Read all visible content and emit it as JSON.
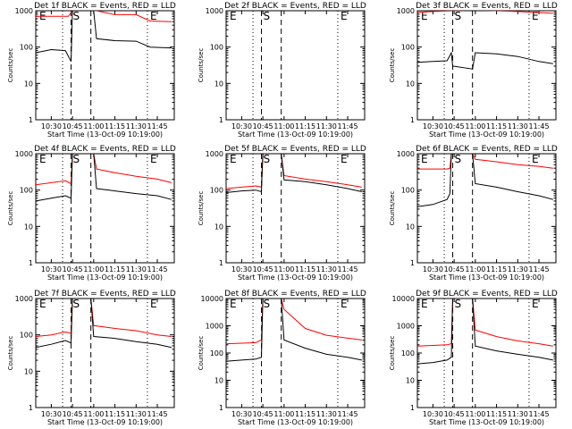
{
  "figure": {
    "colors": {
      "events": "#000000",
      "lld": "#ff0000",
      "axes": "#000000"
    }
  },
  "chart_data": [
    {
      "type": "line",
      "title": "Det 1f BLACK = Events, RED = LLD",
      "xlabel": "Start Time (13-Oct-09 10:19:00)",
      "ylabel": "Counts/sec",
      "y_scale": "log",
      "ylim": [
        1,
        1000
      ],
      "x_ticks": [
        "10:30",
        "10:45",
        "11:00",
        "11:15",
        "11:30",
        "11:45"
      ],
      "y_ticks": [
        "1",
        "10",
        "100",
        "1000"
      ],
      "markers": [
        "E",
        "S",
        "E"
      ],
      "series": [
        {
          "x": [
            "10:19",
            "10:30",
            "10:40",
            "10:42",
            "10:45",
            "11:00",
            "11:02",
            "11:15",
            "11:30",
            "11:40",
            "11:55"
          ],
          "values": [
            700,
            700,
            700,
            700,
            1000,
            1000,
            1000,
            780,
            780,
            520,
            500
          ],
          "color": "red"
        },
        {
          "x": [
            "10:19",
            "10:30",
            "10:40",
            "10:44",
            "10:45",
            "11:00",
            "11:02",
            "11:15",
            "11:30",
            "11:40",
            "11:55"
          ],
          "values": [
            70,
            85,
            80,
            40,
            1000,
            1000,
            170,
            150,
            145,
            100,
            95
          ],
          "color": "black"
        }
      ]
    },
    {
      "type": "line",
      "title": "Det 2f BLACK = Events, RED = LLD",
      "xlabel": "Start Time (13-Oct-09 10:19:00)",
      "ylabel": "Counts/sec",
      "y_scale": "log",
      "ylim": [
        1,
        1000
      ],
      "x_ticks": [
        "10:30",
        "10:45",
        "11:00",
        "11:15",
        "11:30",
        "11:45"
      ],
      "y_ticks": [
        "1",
        "10",
        "100",
        "1000"
      ],
      "markers": [
        "E",
        "S",
        "E"
      ],
      "series": [
        {
          "x": [
            "10:19",
            "10:30",
            "10:40",
            "10:44",
            "10:45",
            "10:57",
            "11:00",
            "11:15",
            "11:30",
            "11:45",
            "11:55"
          ],
          "values": [
            1500,
            1500,
            1500,
            1500,
            9000,
            9000,
            1600,
            1500,
            1500,
            1500,
            1500
          ],
          "color": "red"
        },
        {
          "x": [
            "10:19",
            "10:40",
            "10:44",
            "10:45",
            "11:00",
            "11:02",
            "11:30",
            "11:55"
          ],
          "values": [
            1000,
            1000,
            1000,
            1000,
            1000,
            1000,
            1000,
            1000
          ],
          "color": "black"
        }
      ]
    },
    {
      "type": "line",
      "title": "Det 3f BLACK = Events, RED = LLD",
      "xlabel": "Start Time (13-Oct-09 10:19:00)",
      "ylabel": "Counts/sec",
      "y_scale": "log",
      "ylim": [
        1,
        1000
      ],
      "x_ticks": [
        "10:30",
        "10:45",
        "11:00",
        "11:15",
        "11:30",
        "11:45"
      ],
      "y_ticks": [
        "1",
        "10",
        "100",
        "1000"
      ],
      "markers": [
        "E",
        "S",
        "E"
      ],
      "series": [
        {
          "x": [
            "10:19",
            "10:30",
            "10:44",
            "10:45",
            "11:00",
            "11:15",
            "11:30",
            "11:55"
          ],
          "values": [
            900,
            950,
            1000,
            1000,
            1050,
            1000,
            950,
            850
          ],
          "color": "red"
        },
        {
          "x": [
            "10:19",
            "10:30",
            "10:40",
            "10:43",
            "10:44",
            "10:58",
            "11:00",
            "11:15",
            "11:30",
            "11:45",
            "11:55"
          ],
          "values": [
            38,
            40,
            42,
            70,
            30,
            25,
            70,
            65,
            55,
            40,
            35
          ],
          "color": "black"
        }
      ]
    },
    {
      "type": "line",
      "title": "Det 4f BLACK = Events, RED = LLD",
      "xlabel": "Start Time (13-Oct-09 10:19:00)",
      "ylabel": "Counts/sec",
      "y_scale": "log",
      "ylim": [
        1,
        1000
      ],
      "x_ticks": [
        "10:30",
        "10:45",
        "11:00",
        "11:15",
        "11:30",
        "11:45"
      ],
      "y_ticks": [
        "1",
        "10",
        "100",
        "1000"
      ],
      "markers": [
        "E",
        "S",
        "E"
      ],
      "series": [
        {
          "x": [
            "10:19",
            "10:30",
            "10:40",
            "10:44",
            "10:45",
            "11:00",
            "11:02",
            "11:15",
            "11:30",
            "11:45",
            "11:55"
          ],
          "values": [
            140,
            160,
            180,
            150,
            1000,
            1000,
            380,
            300,
            240,
            200,
            160
          ],
          "color": "red"
        },
        {
          "x": [
            "10:19",
            "10:30",
            "10:40",
            "10:44",
            "10:45",
            "11:00",
            "11:02",
            "11:15",
            "11:30",
            "11:45",
            "11:55"
          ],
          "values": [
            50,
            60,
            70,
            60,
            1000,
            1000,
            110,
            95,
            80,
            70,
            55
          ],
          "color": "black"
        }
      ]
    },
    {
      "type": "line",
      "title": "Det 5f BLACK = Events, RED = LLD",
      "xlabel": "Start Time (13-Oct-09 10:19:00)",
      "ylabel": "Counts/sec",
      "y_scale": "log",
      "ylim": [
        1,
        1000
      ],
      "x_ticks": [
        "10:30",
        "10:45",
        "11:00",
        "11:15",
        "11:30",
        "11:45"
      ],
      "y_ticks": [
        "1",
        "10",
        "100",
        "1000"
      ],
      "markers": [
        "E",
        "S",
        "E"
      ],
      "series": [
        {
          "x": [
            "10:19",
            "10:30",
            "10:40",
            "10:44",
            "10:45",
            "10:58",
            "11:00",
            "11:15",
            "11:30",
            "11:45",
            "11:55"
          ],
          "values": [
            110,
            120,
            130,
            120,
            1000,
            1000,
            250,
            200,
            170,
            140,
            120
          ],
          "color": "red"
        },
        {
          "x": [
            "10:19",
            "10:30",
            "10:40",
            "10:44",
            "10:45",
            "10:58",
            "11:00",
            "11:15",
            "11:30",
            "11:45",
            "11:55"
          ],
          "values": [
            85,
            95,
            100,
            90,
            1000,
            1000,
            190,
            170,
            140,
            110,
            90
          ],
          "color": "black"
        }
      ]
    },
    {
      "type": "line",
      "title": "Det 6f BLACK = Events, RED = LLD",
      "xlabel": "Start Time (13-Oct-09 10:19:00)",
      "ylabel": "Counts/sec",
      "y_scale": "log",
      "ylim": [
        1,
        1000
      ],
      "x_ticks": [
        "10:30",
        "10:45",
        "11:00",
        "11:15",
        "11:30",
        "11:45"
      ],
      "y_ticks": [
        "1",
        "10",
        "100",
        "1000"
      ],
      "markers": [
        "E",
        "S",
        "E"
      ],
      "series": [
        {
          "x": [
            "10:19",
            "10:30",
            "10:40",
            "10:42",
            "10:43",
            "10:58",
            "11:00",
            "11:15",
            "11:30",
            "11:45",
            "11:55"
          ],
          "values": [
            380,
            380,
            380,
            400,
            1000,
            1000,
            700,
            600,
            500,
            450,
            400
          ],
          "color": "red"
        },
        {
          "x": [
            "10:19",
            "10:30",
            "10:40",
            "10:42",
            "10:43",
            "10:58",
            "11:00",
            "11:15",
            "11:30",
            "11:45",
            "11:55"
          ],
          "values": [
            35,
            40,
            55,
            80,
            1000,
            1000,
            150,
            120,
            90,
            70,
            55
          ],
          "color": "black"
        }
      ]
    },
    {
      "type": "line",
      "title": "Det 7f BLACK = Events, RED = LLD",
      "xlabel": "Start Time (13-Oct-09 10:19:00)",
      "ylabel": "Counts/sec",
      "y_scale": "log",
      "ylim": [
        1,
        1000
      ],
      "x_ticks": [
        "10:30",
        "10:45",
        "11:00",
        "11:15",
        "11:30",
        "11:45"
      ],
      "y_ticks": [
        "1",
        "10",
        "100",
        "1000"
      ],
      "markers": [
        "E",
        "S",
        "E"
      ],
      "series": [
        {
          "x": [
            "10:19",
            "10:30",
            "10:40",
            "10:44",
            "10:45",
            "10:58",
            "11:00",
            "11:15",
            "11:30",
            "11:45",
            "11:55"
          ],
          "values": [
            90,
            100,
            120,
            110,
            1000,
            1000,
            180,
            150,
            130,
            100,
            90
          ],
          "color": "red"
        },
        {
          "x": [
            "10:19",
            "10:30",
            "10:40",
            "10:44",
            "10:45",
            "10:58",
            "11:00",
            "11:15",
            "11:30",
            "11:45",
            "11:55"
          ],
          "values": [
            45,
            55,
            70,
            60,
            1000,
            1000,
            90,
            80,
            65,
            55,
            45
          ],
          "color": "black"
        }
      ]
    },
    {
      "type": "line",
      "title": "Det 8f BLACK = Events, RED = LLD",
      "xlabel": "Start Time (13-Oct-09 10:19:00)",
      "ylabel": "Counts/sec",
      "y_scale": "log",
      "ylim": [
        1,
        10000
      ],
      "x_ticks": [
        "10:30",
        "10:45",
        "11:00",
        "11:15",
        "11:30",
        "11:45"
      ],
      "y_ticks": [
        "1",
        "10",
        "100",
        "1000",
        "10000"
      ],
      "markers": [
        "E",
        "S",
        "E"
      ],
      "series": [
        {
          "x": [
            "10:19",
            "10:30",
            "10:40",
            "10:44",
            "10:45",
            "10:58",
            "11:00",
            "11:15",
            "11:30",
            "11:45",
            "11:55"
          ],
          "values": [
            220,
            230,
            240,
            300,
            10000,
            10000,
            4000,
            800,
            450,
            350,
            300
          ],
          "color": "red"
        },
        {
          "x": [
            "10:19",
            "10:30",
            "10:40",
            "10:44",
            "10:45",
            "10:58",
            "11:00",
            "11:15",
            "11:30",
            "11:45",
            "11:55"
          ],
          "values": [
            50,
            55,
            60,
            70,
            10000,
            10000,
            300,
            150,
            90,
            70,
            55
          ],
          "color": "black"
        }
      ]
    },
    {
      "type": "line",
      "title": "Det 9f BLACK = Events, RED = LLD",
      "xlabel": "Start Time (13-Oct-09 10:19:00)",
      "ylabel": "Counts/sec",
      "y_scale": "log",
      "ylim": [
        1,
        10000
      ],
      "x_ticks": [
        "10:30",
        "10:45",
        "11:00",
        "11:15",
        "11:30",
        "11:45"
      ],
      "y_ticks": [
        "1",
        "10",
        "100",
        "1000",
        "10000"
      ],
      "markers": [
        "E",
        "S",
        "E"
      ],
      "series": [
        {
          "x": [
            "10:19",
            "10:30",
            "10:40",
            "10:43",
            "10:44",
            "10:58",
            "11:00",
            "11:15",
            "11:30",
            "11:45",
            "11:55"
          ],
          "values": [
            180,
            190,
            200,
            220,
            10000,
            10000,
            700,
            400,
            280,
            220,
            180
          ],
          "color": "red"
        },
        {
          "x": [
            "10:19",
            "10:30",
            "10:40",
            "10:43",
            "10:44",
            "10:58",
            "11:00",
            "11:15",
            "11:30",
            "11:45",
            "11:55"
          ],
          "values": [
            40,
            45,
            55,
            70,
            10000,
            10000,
            180,
            120,
            90,
            70,
            55
          ],
          "color": "black"
        }
      ]
    }
  ]
}
